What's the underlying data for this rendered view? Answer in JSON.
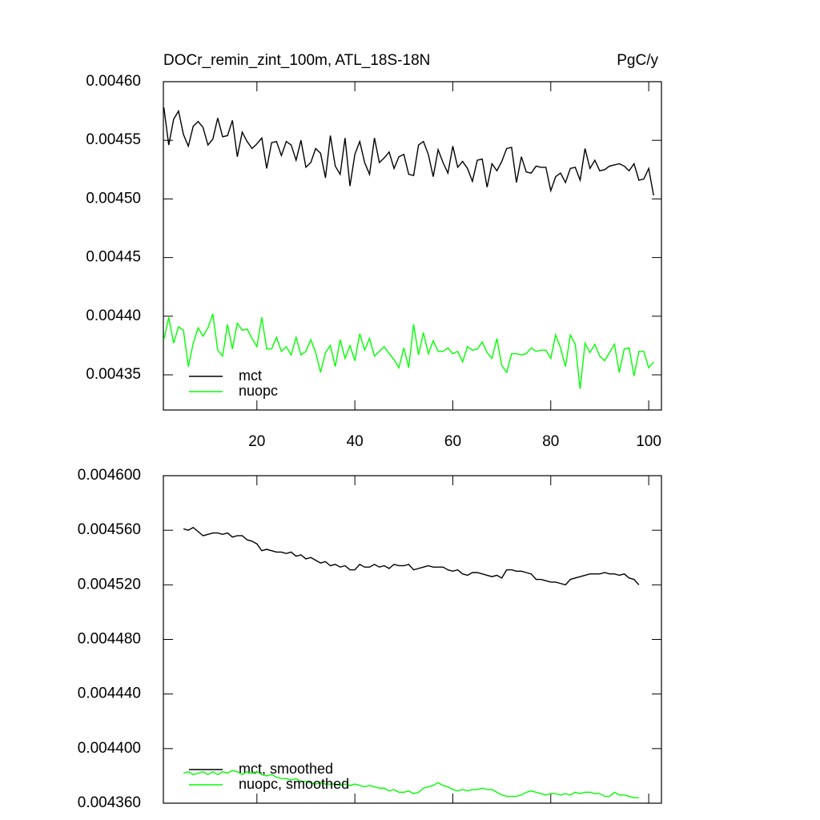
{
  "chart_data": [
    {
      "type": "line",
      "title": "DOCr_remin_zint_100m, ATL_18S-18N",
      "right_title": "PgC/y",
      "x": [
        1,
        2,
        3,
        4,
        5,
        6,
        7,
        8,
        9,
        10,
        11,
        12,
        13,
        14,
        15,
        16,
        17,
        18,
        19,
        20,
        21,
        22,
        23,
        24,
        25,
        26,
        27,
        28,
        29,
        30,
        31,
        32,
        33,
        34,
        35,
        36,
        37,
        38,
        39,
        40,
        41,
        42,
        43,
        44,
        45,
        46,
        47,
        48,
        49,
        50,
        51,
        52,
        53,
        54,
        55,
        56,
        57,
        58,
        59,
        60,
        61,
        62,
        63,
        64,
        65,
        66,
        67,
        68,
        69,
        70,
        71,
        72,
        73,
        74,
        75,
        76,
        77,
        78,
        79,
        80,
        81,
        82,
        83,
        84,
        85,
        86,
        87,
        88,
        89,
        90,
        91,
        92,
        93,
        94,
        95,
        96,
        97,
        98,
        99,
        100,
        101
      ],
      "series": [
        {
          "name": "mct",
          "color": "#000000",
          "values": [
            0.004578,
            0.004546,
            0.004568,
            0.004575,
            0.004555,
            0.004545,
            0.004562,
            0.004566,
            0.004561,
            0.004546,
            0.004551,
            0.004569,
            0.004553,
            0.004554,
            0.004567,
            0.004536,
            0.004557,
            0.004549,
            0.004543,
            0.004547,
            0.004552,
            0.004526,
            0.004548,
            0.004549,
            0.004537,
            0.004549,
            0.004546,
            0.004533,
            0.00455,
            0.004527,
            0.004531,
            0.004543,
            0.004539,
            0.004518,
            0.004554,
            0.004528,
            0.004521,
            0.004552,
            0.004511,
            0.004538,
            0.004549,
            0.004531,
            0.004521,
            0.004552,
            0.004531,
            0.004535,
            0.00454,
            0.004526,
            0.004536,
            0.004538,
            0.004521,
            0.00452,
            0.004546,
            0.004549,
            0.004538,
            0.004519,
            0.004542,
            0.004531,
            0.004522,
            0.004545,
            0.004527,
            0.004532,
            0.004526,
            0.004515,
            0.004533,
            0.004534,
            0.00451,
            0.00453,
            0.004524,
            0.004532,
            0.004543,
            0.004544,
            0.004514,
            0.004536,
            0.004523,
            0.004522,
            0.004528,
            0.004527,
            0.004527,
            0.004507,
            0.004519,
            0.004522,
            0.004514,
            0.004526,
            0.004527,
            0.004516,
            0.004543,
            0.004526,
            0.004533,
            0.004524,
            0.004525,
            0.004528,
            0.004529,
            0.00453,
            0.004528,
            0.004524,
            0.00453,
            0.004516,
            0.004517,
            0.004526,
            0.004503
          ]
        },
        {
          "name": "nuopc",
          "color": "#00ff00",
          "values": [
            0.00438,
            0.004399,
            0.004377,
            0.004391,
            0.004388,
            0.004357,
            0.004377,
            0.00439,
            0.004383,
            0.00439,
            0.004402,
            0.004371,
            0.004366,
            0.004393,
            0.004372,
            0.004394,
            0.004388,
            0.004389,
            0.004381,
            0.004374,
            0.004399,
            0.004372,
            0.004372,
            0.004382,
            0.00437,
            0.004374,
            0.004367,
            0.004382,
            0.004367,
            0.00437,
            0.00438,
            0.004369,
            0.004352,
            0.004369,
            0.004375,
            0.004357,
            0.00438,
            0.004364,
            0.004375,
            0.004362,
            0.004385,
            0.004371,
            0.004381,
            0.004366,
            0.00437,
            0.004374,
            0.004368,
            0.004363,
            0.004356,
            0.004373,
            0.004356,
            0.004393,
            0.004367,
            0.004386,
            0.004368,
            0.004379,
            0.00437,
            0.00437,
            0.004373,
            0.004368,
            0.00437,
            0.004361,
            0.004374,
            0.004371,
            0.004372,
            0.004378,
            0.004369,
            0.004364,
            0.004381,
            0.004358,
            0.004352,
            0.004368,
            0.004368,
            0.004367,
            0.004368,
            0.004373,
            0.00437,
            0.004371,
            0.004371,
            0.004364,
            0.004384,
            0.004373,
            0.004357,
            0.004384,
            0.004376,
            0.004338,
            0.004377,
            0.004369,
            0.004376,
            0.004366,
            0.004362,
            0.004369,
            0.004376,
            0.004352,
            0.004372,
            0.004373,
            0.004349,
            0.00437,
            0.00437,
            0.004356,
            0.004361
          ]
        }
      ],
      "xlim": [
        0.9,
        102.6
      ],
      "xticks": [
        20,
        40,
        60,
        80,
        100
      ],
      "xtick_labels": true,
      "ylim": [
        0.00432,
        0.0046
      ],
      "yticks": [
        {
          "value": 0.00435,
          "label": "0.00435"
        },
        {
          "value": 0.0044,
          "label": "0.00440"
        },
        {
          "value": 0.00445,
          "label": "0.00445"
        },
        {
          "value": 0.0045,
          "label": "0.00450"
        },
        {
          "value": 0.00455,
          "label": "0.00455"
        },
        {
          "value": 0.0046,
          "label": "0.00460"
        }
      ],
      "legend": "lower left"
    },
    {
      "type": "line",
      "x": [
        5,
        6,
        7,
        8,
        9,
        10,
        11,
        12,
        13,
        14,
        15,
        16,
        17,
        18,
        19,
        20,
        21,
        22,
        23,
        24,
        25,
        26,
        27,
        28,
        29,
        30,
        31,
        32,
        33,
        34,
        35,
        36,
        37,
        38,
        39,
        40,
        41,
        42,
        43,
        44,
        45,
        46,
        47,
        48,
        49,
        50,
        51,
        52,
        53,
        54,
        55,
        56,
        57,
        58,
        59,
        60,
        61,
        62,
        63,
        64,
        65,
        66,
        67,
        68,
        69,
        70,
        71,
        72,
        73,
        74,
        75,
        76,
        77,
        78,
        79,
        80,
        81,
        82,
        83,
        84,
        85,
        86,
        87,
        88,
        89,
        90,
        91,
        92,
        93,
        94,
        95,
        96,
        97,
        98
      ],
      "series": [
        {
          "name": "mct, smoothed",
          "color": "#000000",
          "values": [
            0.004561,
            0.00456,
            0.004562,
            0.004559,
            0.004556,
            0.004557,
            0.004558,
            0.004558,
            0.004557,
            0.004558,
            0.004555,
            0.004556,
            0.004556,
            0.004553,
            0.004552,
            0.00455,
            0.004545,
            0.004546,
            0.004545,
            0.004544,
            0.004544,
            0.004543,
            0.004544,
            0.004541,
            0.004542,
            0.004539,
            0.00454,
            0.004538,
            0.004536,
            0.004537,
            0.004534,
            0.004535,
            0.004533,
            0.004534,
            0.004531,
            0.004531,
            0.004535,
            0.004533,
            0.004533,
            0.004535,
            0.004533,
            0.004534,
            0.004532,
            0.004535,
            0.004534,
            0.004534,
            0.004535,
            0.004531,
            0.004532,
            0.004533,
            0.004534,
            0.004533,
            0.004533,
            0.004533,
            0.004531,
            0.00453,
            0.004531,
            0.004528,
            0.004527,
            0.004529,
            0.004529,
            0.004528,
            0.004527,
            0.004526,
            0.004527,
            0.004525,
            0.004531,
            0.004531,
            0.00453,
            0.00453,
            0.004529,
            0.004528,
            0.004524,
            0.004524,
            0.004523,
            0.004522,
            0.004522,
            0.004521,
            0.00452,
            0.004524,
            0.004525,
            0.004526,
            0.004527,
            0.004528,
            0.004528,
            0.004528,
            0.004529,
            0.004528,
            0.004528,
            0.004527,
            0.004528,
            0.004525,
            0.004524,
            0.00452
          ]
        },
        {
          "name": "nuopc, smoothed",
          "color": "#00ff00",
          "values": [
            0.004382,
            0.004383,
            0.004381,
            0.004382,
            0.004383,
            0.004381,
            0.004383,
            0.004381,
            0.004383,
            0.004382,
            0.004384,
            0.004383,
            0.004381,
            0.004383,
            0.004382,
            0.004383,
            0.004381,
            0.00438,
            0.004381,
            0.004379,
            0.004378,
            0.004378,
            0.004377,
            0.004378,
            0.004376,
            0.004376,
            0.004375,
            0.004374,
            0.004375,
            0.004374,
            0.004374,
            0.004374,
            0.004373,
            0.004374,
            0.004373,
            0.004374,
            0.004373,
            0.004372,
            0.004373,
            0.004372,
            0.004371,
            0.004371,
            0.004369,
            0.00437,
            0.004368,
            0.004368,
            0.004369,
            0.004367,
            0.004368,
            0.004371,
            0.004372,
            0.004373,
            0.004375,
            0.004373,
            0.004372,
            0.00437,
            0.004369,
            0.00437,
            0.004369,
            0.00437,
            0.00437,
            0.004371,
            0.00437,
            0.00437,
            0.004368,
            0.004366,
            0.004365,
            0.004365,
            0.004365,
            0.004366,
            0.004368,
            0.004369,
            0.004368,
            0.004367,
            0.004366,
            0.004367,
            0.004367,
            0.004366,
            0.004367,
            0.004366,
            0.004368,
            0.004367,
            0.004368,
            0.004368,
            0.004367,
            0.004367,
            0.004365,
            0.004365,
            0.004368,
            0.004366,
            0.004366,
            0.004365,
            0.004364,
            0.004364
          ]
        }
      ],
      "xlim": [
        0.9,
        102.6
      ],
      "xticks": [
        20,
        40,
        60,
        80,
        100
      ],
      "xtick_labels": false,
      "ylim": [
        0.00436,
        0.0046
      ],
      "yticks": [
        {
          "value": 0.00436,
          "label": "0.004360"
        },
        {
          "value": 0.0044,
          "label": "0.004400"
        },
        {
          "value": 0.00444,
          "label": "0.004440"
        },
        {
          "value": 0.00448,
          "label": "0.004480"
        },
        {
          "value": 0.00452,
          "label": "0.004520"
        },
        {
          "value": 0.00456,
          "label": "0.004560"
        },
        {
          "value": 0.0046,
          "label": "0.004600"
        }
      ],
      "legend": "lower left"
    }
  ]
}
